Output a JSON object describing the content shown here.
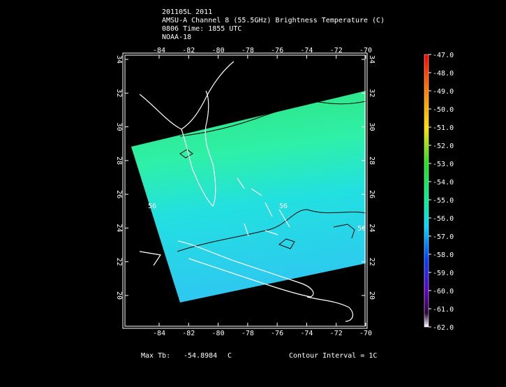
{
  "header": {
    "lines": [
      "201105L 2011",
      "AMSU-A Channel 8 (55.5GHz) Brightness Temperature (C)",
      "0806 Time: 1855 UTC",
      "NOAA-18"
    ]
  },
  "map": {
    "lon_ticks": [
      -84,
      -82,
      -80,
      -78,
      -76,
      -74,
      -72,
      -70
    ],
    "lat_ticks": [
      20,
      22,
      24,
      26,
      28,
      30,
      32,
      34
    ],
    "contour_labels": [
      "56",
      "56",
      "56"
    ]
  },
  "colorbar": {
    "labels": [
      "-47.0",
      "-48.0",
      "-49.0",
      "-50.0",
      "-51.0",
      "-52.0",
      "-53.0",
      "-54.0",
      "-55.0",
      "-56.0",
      "-57.0",
      "-58.0",
      "-59.0",
      "-60.0",
      "-61.0",
      "-62.0"
    ]
  },
  "footer": {
    "max_label": "Max Tb:",
    "max_value": "-54.8984",
    "max_unit": "C",
    "contour_interval": "Contour Interval = 1C"
  }
}
